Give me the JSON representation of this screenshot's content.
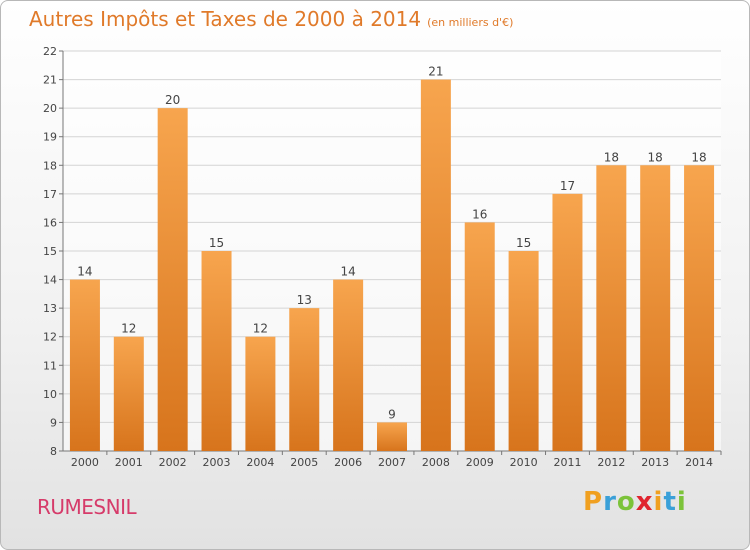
{
  "title": "Autres Impôts et Taxes de 2000 à 2014",
  "unit": "(en milliers d'€)",
  "commune": "RUMESNIL",
  "logo": {
    "letters": [
      "P",
      "r",
      "o",
      "x",
      "i",
      "t",
      "i"
    ],
    "colors": [
      "#f0a020",
      "#3aa0d8",
      "#7cc33a",
      "#e0242f",
      "#f0a020",
      "#3aa0d8",
      "#7cc33a"
    ]
  },
  "colors": {
    "bar_top": "#f7a54e",
    "bar_bottom": "#d7741c",
    "title": "#e07a2a",
    "commune": "#d63b6a"
  },
  "chart_data": {
    "type": "bar",
    "categories": [
      "2000",
      "2001",
      "2002",
      "2003",
      "2004",
      "2005",
      "2006",
      "2007",
      "2008",
      "2009",
      "2010",
      "2011",
      "2012",
      "2013",
      "2014"
    ],
    "values": [
      14,
      12,
      20,
      15,
      12,
      13,
      14,
      9,
      21,
      16,
      15,
      17,
      18,
      18,
      18
    ],
    "title": "Autres Impôts et Taxes de 2000 à 2014",
    "ylim": [
      8,
      22
    ],
    "yticks": [
      8,
      9,
      10,
      11,
      12,
      13,
      14,
      15,
      16,
      17,
      18,
      19,
      20,
      21,
      22
    ],
    "grid": true,
    "data_labels": true
  }
}
